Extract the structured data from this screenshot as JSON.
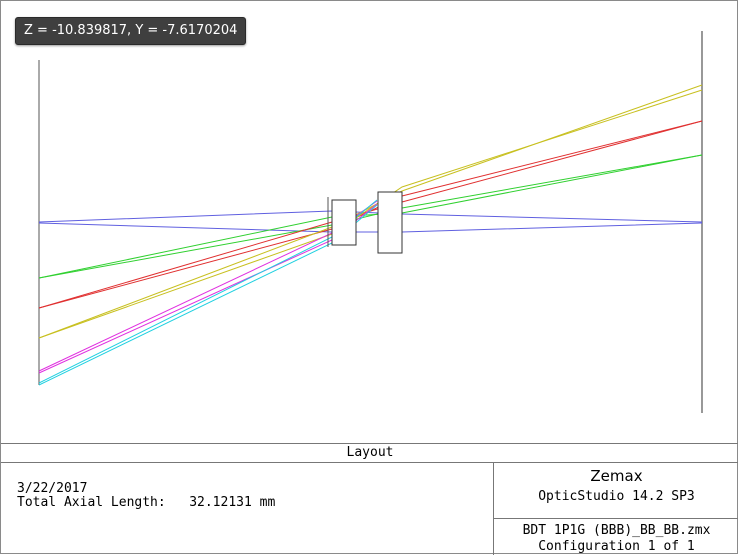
{
  "readout": {
    "text": "Z = -10.839817, Y = -7.6170204"
  },
  "footer": {
    "title": "Layout",
    "date": "3/22/2017",
    "axial_length_label": "Total Axial Length:",
    "axial_length_value": "32.12131 mm",
    "brand": "Zemax",
    "product": "OpticStudio 14.2 SP3",
    "filename": "BDT 1P1G (BBB)_BB_BB.zmx",
    "configuration": "Configuration 1 of 1"
  },
  "ray_colors": [
    "#6060e0",
    "#30d030",
    "#e03030",
    "#c8c020",
    "#e030e0",
    "#20d0e0"
  ]
}
